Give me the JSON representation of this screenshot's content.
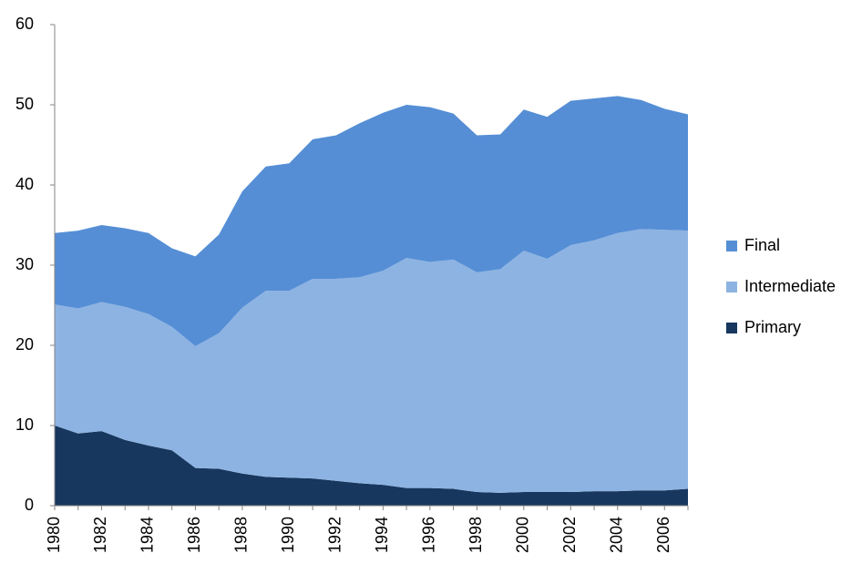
{
  "chart_data": {
    "type": "stacked_area",
    "categories": [
      "1980",
      null,
      "1982",
      null,
      "1984",
      null,
      "1986",
      null,
      "1988",
      null,
      "1990",
      null,
      "1992",
      null,
      "1994",
      null,
      "1996",
      null,
      "1998",
      null,
      "2000",
      null,
      "2002",
      null,
      "2004",
      null,
      "2006",
      null
    ],
    "series": [
      {
        "name": "Primary",
        "color": "#17375e",
        "values": [
          10.0,
          9.0,
          9.3,
          8.2,
          7.5,
          6.9,
          4.7,
          4.6,
          4.0,
          3.6,
          3.5,
          3.4,
          3.1,
          2.8,
          2.6,
          2.2,
          2.2,
          2.1,
          1.7,
          1.6,
          1.7,
          1.7,
          1.7,
          1.8,
          1.8,
          1.9,
          1.9,
          2.1
        ]
      },
      {
        "name": "Intermediate",
        "color": "#8db3e2",
        "values": [
          15.1,
          15.6,
          16.1,
          16.6,
          16.4,
          15.4,
          15.2,
          16.9,
          20.7,
          23.2,
          23.3,
          24.9,
          25.2,
          25.7,
          26.7,
          28.7,
          28.2,
          28.6,
          27.4,
          27.9,
          30.1,
          29.1,
          30.8,
          31.3,
          32.2,
          32.6,
          32.5,
          32.2
        ]
      },
      {
        "name": "Final",
        "color": "#558ed5",
        "values": [
          8.9,
          9.7,
          9.6,
          9.8,
          10.1,
          9.8,
          11.2,
          12.3,
          14.5,
          15.5,
          15.9,
          17.4,
          17.9,
          19.2,
          19.7,
          19.1,
          19.3,
          18.2,
          17.1,
          16.8,
          17.6,
          17.7,
          18.0,
          17.7,
          17.1,
          16.1,
          15.1,
          14.5
        ]
      }
    ],
    "ylim": [
      0,
      60
    ],
    "yticks": [
      0,
      10,
      20,
      30,
      40,
      50,
      60
    ],
    "grid": false,
    "legend": "right"
  }
}
